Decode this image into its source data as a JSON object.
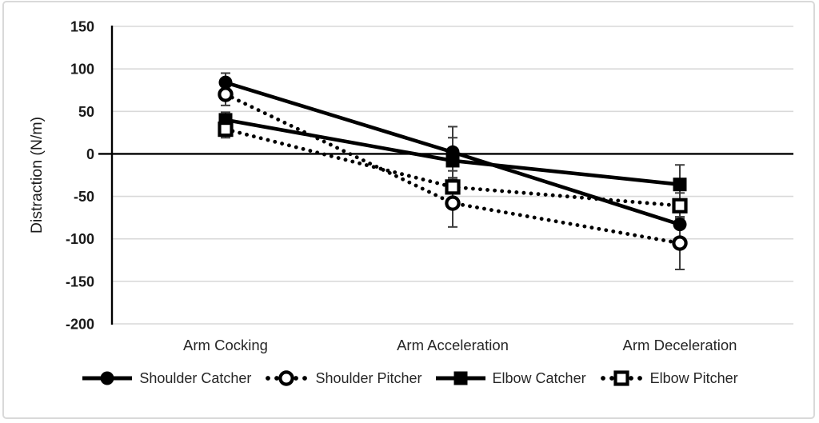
{
  "figure": {
    "background": "#ffffff",
    "border_color": "#d9d9d9",
    "grid_color": "#d9d9d9",
    "text_color": "#1a1a1a",
    "series_color": "#000000",
    "error_bar_color": "#3d3d3d"
  },
  "chart_data": {
    "type": "line",
    "title": "",
    "xlabel": "",
    "ylabel": "Distraction (N/m)",
    "categories": [
      "Arm Cocking",
      "Arm Acceleration",
      "Arm Deceleration"
    ],
    "y_ticks": [
      "150",
      "100",
      "50",
      "0",
      "-50",
      "-100",
      "-150",
      "-200"
    ],
    "y_tick_values": [
      150,
      100,
      50,
      0,
      -50,
      -100,
      -150,
      -200
    ],
    "ylim": [
      -200,
      150
    ],
    "grid": true,
    "legend_position": "bottom",
    "error_bars": true,
    "series": [
      {
        "name": "Shoulder Catcher",
        "line_style": "solid",
        "marker": "circle",
        "marker_fill": "filled",
        "values": [
          84,
          2,
          -83
        ],
        "errors": [
          11,
          30,
          20
        ]
      },
      {
        "name": "Shoulder Pitcher",
        "line_style": "dotted",
        "marker": "circle",
        "marker_fill": "open",
        "values": [
          70,
          -58,
          -105
        ],
        "errors": [
          13,
          28,
          31
        ]
      },
      {
        "name": "Elbow Catcher",
        "line_style": "solid",
        "marker": "square",
        "marker_fill": "filled",
        "values": [
          40,
          -8,
          -36
        ],
        "errors": [
          9,
          27,
          23
        ]
      },
      {
        "name": "Elbow Pitcher",
        "line_style": "dotted",
        "marker": "square",
        "marker_fill": "open",
        "values": [
          29,
          -39,
          -61
        ],
        "errors": [
          10,
          19,
          15
        ]
      }
    ]
  }
}
